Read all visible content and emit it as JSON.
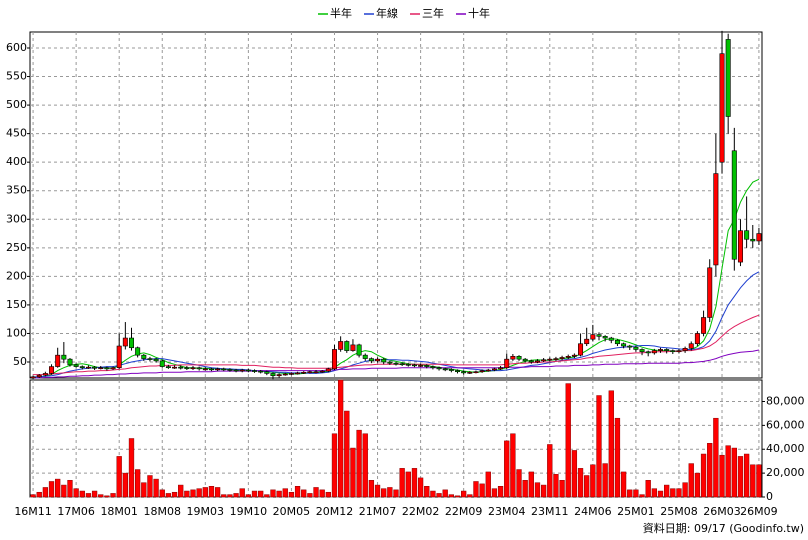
{
  "chart_data": [
    {
      "type": "candlestick",
      "categories": [
        "16M11",
        null,
        null,
        null,
        null,
        null,
        null,
        "17M06",
        null,
        null,
        null,
        null,
        null,
        null,
        "18M01",
        null,
        null,
        null,
        null,
        null,
        null,
        "18M08",
        null,
        null,
        null,
        null,
        null,
        null,
        "19M03",
        null,
        null,
        null,
        null,
        null,
        null,
        "19M10",
        null,
        null,
        null,
        null,
        null,
        null,
        "20M05",
        null,
        null,
        null,
        null,
        null,
        null,
        "20M12",
        null,
        null,
        null,
        null,
        null,
        null,
        "21M07",
        null,
        null,
        null,
        null,
        null,
        null,
        "22M02",
        null,
        null,
        null,
        null,
        null,
        null,
        "22M09",
        null,
        null,
        null,
        null,
        null,
        null,
        "23M04",
        null,
        null,
        null,
        null,
        null,
        null,
        "23M11",
        null,
        null,
        null,
        null,
        null,
        null,
        "24M06",
        null,
        null,
        null,
        null,
        null,
        null,
        "25M01",
        null,
        null,
        null,
        null,
        null,
        null,
        "25M08",
        null,
        null,
        null,
        null,
        null,
        null,
        "26M03",
        null,
        null,
        null,
        null,
        null,
        "26M09"
      ],
      "open": [
        22,
        24,
        27,
        30,
        42,
        62,
        55,
        45,
        42,
        40,
        41,
        39,
        40,
        38,
        40,
        78,
        92,
        75,
        62,
        56,
        55,
        52,
        42,
        40,
        41,
        40,
        39,
        40,
        38,
        38,
        37,
        38,
        37,
        36,
        35,
        36,
        35,
        34,
        33,
        30,
        26,
        28,
        29,
        30,
        31,
        32,
        33,
        33,
        34,
        38,
        72,
        86,
        70,
        80,
        62,
        56,
        52,
        55,
        50,
        48,
        47,
        46,
        45,
        44,
        44,
        42,
        40,
        38,
        37,
        35,
        33,
        31,
        32,
        33,
        35,
        36,
        38,
        40,
        55,
        60,
        55,
        52,
        50,
        52,
        54,
        55,
        56,
        58,
        60,
        62,
        82,
        90,
        98,
        95,
        92,
        88,
        82,
        78,
        76,
        72,
        68,
        66,
        70,
        72,
        70,
        68,
        70,
        74,
        82,
        100,
        128,
        220,
        400,
        615,
        420,
        225,
        280,
        265,
        262
      ],
      "high": [
        26,
        29,
        33,
        46,
        75,
        85,
        57,
        47,
        44,
        44,
        43,
        43,
        42,
        42,
        100,
        120,
        110,
        77,
        64,
        59,
        57,
        54,
        45,
        44,
        44,
        43,
        43,
        42,
        41,
        40,
        40,
        40,
        39,
        38,
        38,
        38,
        37,
        36,
        35,
        32,
        30,
        31,
        32,
        33,
        34,
        35,
        36,
        36,
        40,
        80,
        95,
        88,
        90,
        82,
        65,
        58,
        58,
        57,
        52,
        50,
        49,
        48,
        47,
        47,
        46,
        44,
        42,
        40,
        39,
        37,
        35,
        34,
        35,
        37,
        38,
        40,
        43,
        65,
        64,
        62,
        57,
        54,
        55,
        57,
        58,
        59,
        61,
        63,
        65,
        100,
        110,
        115,
        102,
        97,
        94,
        90,
        84,
        80,
        78,
        74,
        70,
        73,
        75,
        74,
        72,
        73,
        77,
        86,
        104,
        140,
        230,
        450,
        630,
        625,
        460,
        300,
        340,
        290,
        285
      ],
      "low": [
        20,
        22,
        25,
        28,
        40,
        48,
        42,
        40,
        37,
        38,
        36,
        37,
        35,
        36,
        38,
        72,
        70,
        58,
        52,
        51,
        49,
        40,
        38,
        38,
        37,
        36,
        36,
        35,
        35,
        34,
        34,
        34,
        33,
        32,
        32,
        32,
        31,
        30,
        27,
        20,
        23,
        26,
        27,
        28,
        29,
        30,
        30,
        31,
        32,
        36,
        68,
        66,
        68,
        58,
        52,
        48,
        49,
        46,
        45,
        44,
        43,
        42,
        41,
        41,
        39,
        37,
        35,
        34,
        32,
        30,
        28,
        29,
        30,
        31,
        33,
        34,
        36,
        38,
        52,
        52,
        49,
        47,
        48,
        50,
        51,
        52,
        53,
        55,
        57,
        60,
        78,
        86,
        88,
        86,
        83,
        78,
        74,
        71,
        68,
        62,
        60,
        63,
        66,
        65,
        64,
        65,
        66,
        70,
        78,
        95,
        120,
        200,
        380,
        450,
        210,
        218,
        250,
        250,
        255
      ],
      "close": [
        24,
        27,
        30,
        42,
        62,
        55,
        45,
        42,
        40,
        41,
        39,
        40,
        38,
        40,
        78,
        92,
        75,
        62,
        56,
        55,
        52,
        42,
        40,
        41,
        40,
        39,
        40,
        38,
        38,
        37,
        38,
        37,
        36,
        35,
        36,
        35,
        34,
        33,
        30,
        26,
        28,
        29,
        30,
        31,
        32,
        33,
        33,
        34,
        38,
        72,
        86,
        70,
        80,
        62,
        56,
        52,
        55,
        50,
        48,
        47,
        46,
        45,
        44,
        44,
        42,
        40,
        38,
        37,
        35,
        33,
        31,
        32,
        33,
        35,
        36,
        38,
        40,
        55,
        60,
        55,
        52,
        50,
        52,
        54,
        55,
        56,
        58,
        60,
        62,
        82,
        90,
        98,
        95,
        92,
        88,
        82,
        78,
        76,
        72,
        68,
        66,
        70,
        72,
        70,
        68,
        70,
        74,
        82,
        100,
        128,
        215,
        380,
        590,
        480,
        230,
        280,
        265,
        262,
        275
      ],
      "up_color": "#ff0000",
      "down_color": "#00c000",
      "series": [
        {
          "name": "半年",
          "color": "#00c000",
          "values": [
            22,
            23,
            25,
            28,
            35,
            40,
            44,
            46,
            47,
            45,
            42,
            40,
            40,
            39,
            45,
            53,
            60,
            64,
            66,
            63,
            58,
            54,
            49,
            46,
            43,
            40,
            40,
            39,
            39,
            38,
            38,
            37,
            37,
            36,
            36,
            35,
            35,
            34,
            33,
            32,
            31,
            30,
            29,
            29,
            30,
            31,
            32,
            33,
            34,
            40,
            48,
            54,
            62,
            67,
            70,
            68,
            62,
            57,
            53,
            51,
            49,
            47,
            46,
            45,
            44,
            42,
            41,
            39,
            37,
            36,
            34,
            33,
            32,
            33,
            34,
            35,
            37,
            40,
            44,
            48,
            51,
            53,
            54,
            53,
            53,
            54,
            56,
            57,
            59,
            64,
            70,
            77,
            84,
            89,
            91,
            90,
            87,
            84,
            80,
            76,
            73,
            71,
            70,
            70,
            69,
            69,
            70,
            72,
            77,
            87,
            108,
            147,
            214,
            280,
            300,
            330,
            350,
            365,
            370
          ]
        },
        {
          "name": "年線",
          "color": "#2040d0",
          "values": [
            24,
            24,
            25,
            26,
            28,
            31,
            34,
            36,
            38,
            39,
            40,
            41,
            42,
            42,
            44,
            47,
            50,
            52,
            54,
            55,
            56,
            56,
            54,
            52,
            50,
            48,
            46,
            44,
            42,
            40,
            39,
            38,
            38,
            37,
            37,
            36,
            35,
            35,
            34,
            33,
            32,
            32,
            31,
            31,
            31,
            30,
            30,
            31,
            32,
            35,
            38,
            41,
            45,
            48,
            51,
            53,
            54,
            54,
            54,
            54,
            53,
            53,
            52,
            51,
            50,
            48,
            46,
            44,
            42,
            40,
            39,
            38,
            37,
            36,
            35,
            35,
            35,
            36,
            38,
            40,
            42,
            44,
            45,
            47,
            49,
            51,
            53,
            55,
            56,
            58,
            61,
            65,
            68,
            71,
            73,
            75,
            76,
            77,
            78,
            79,
            79,
            78,
            76,
            75,
            74,
            73,
            72,
            72,
            73,
            77,
            87,
            104,
            128,
            150,
            165,
            180,
            192,
            202,
            208
          ]
        },
        {
          "name": "三年",
          "color": "#e02060",
          "values": [
            28,
            28,
            28,
            29,
            30,
            31,
            32,
            33,
            33,
            34,
            34,
            35,
            35,
            36,
            37,
            38,
            40,
            41,
            42,
            43,
            43,
            44,
            44,
            44,
            45,
            45,
            45,
            45,
            45,
            45,
            45,
            45,
            45,
            45,
            44,
            44,
            44,
            43,
            42,
            41,
            41,
            40,
            40,
            39,
            39,
            39,
            39,
            39,
            39,
            40,
            41,
            42,
            43,
            44,
            45,
            45,
            46,
            46,
            46,
            46,
            46,
            46,
            46,
            46,
            46,
            46,
            46,
            46,
            45,
            45,
            45,
            45,
            45,
            45,
            45,
            45,
            45,
            46,
            47,
            48,
            48,
            49,
            49,
            50,
            50,
            51,
            52,
            53,
            54,
            55,
            57,
            58,
            60,
            61,
            62,
            63,
            64,
            65,
            66,
            66,
            67,
            68,
            68,
            68,
            69,
            69,
            70,
            70,
            72,
            74,
            78,
            85,
            95,
            105,
            112,
            118,
            123,
            128,
            132
          ]
        },
        {
          "name": "十年",
          "color": "#8000c0",
          "values": [
            22,
            22,
            23,
            23,
            24,
            24,
            25,
            25,
            26,
            26,
            27,
            27,
            28,
            28,
            29,
            29,
            30,
            30,
            31,
            31,
            31,
            32,
            32,
            32,
            32,
            33,
            33,
            33,
            33,
            33,
            34,
            34,
            34,
            34,
            34,
            34,
            34,
            35,
            35,
            35,
            35,
            35,
            35,
            35,
            35,
            35,
            35,
            35,
            36,
            36,
            37,
            37,
            38,
            38,
            38,
            39,
            39,
            39,
            39,
            39,
            40,
            40,
            40,
            40,
            40,
            40,
            40,
            40,
            40,
            40,
            40,
            40,
            40,
            40,
            40,
            40,
            40,
            41,
            41,
            41,
            41,
            42,
            42,
            42,
            42,
            43,
            43,
            43,
            44,
            44,
            44,
            45,
            45,
            46,
            46,
            46,
            47,
            47,
            47,
            47,
            48,
            48,
            48,
            48,
            48,
            48,
            49,
            49,
            50,
            51,
            53,
            56,
            60,
            63,
            65,
            67,
            68,
            69,
            71
          ]
        }
      ],
      "ylim": [
        22,
        628
      ],
      "yticks": [
        50,
        100,
        150,
        200,
        250,
        300,
        350,
        400,
        450,
        500,
        550,
        600
      ],
      "grid": true
    },
    {
      "type": "bar",
      "color": "#ff0000",
      "values": [
        2000,
        4000,
        8000,
        13000,
        15000,
        10000,
        14000,
        7000,
        5000,
        3000,
        5000,
        2000,
        1000,
        3000,
        34000,
        20000,
        49000,
        23000,
        12000,
        18000,
        15000,
        6000,
        3000,
        4000,
        10000,
        5000,
        6000,
        7000,
        8000,
        9000,
        8000,
        2000,
        2000,
        3000,
        7000,
        2000,
        5000,
        5000,
        2000,
        6000,
        5000,
        7000,
        4000,
        9000,
        6000,
        3000,
        8000,
        6000,
        4000,
        53000,
        98000,
        72000,
        41000,
        56000,
        53000,
        14000,
        10000,
        7000,
        8000,
        6000,
        24000,
        21000,
        24000,
        16000,
        9000,
        5000,
        3000,
        6000,
        2000,
        1000,
        5000,
        2000,
        13000,
        11000,
        21000,
        7000,
        9000,
        47000,
        53000,
        23000,
        14000,
        21000,
        12000,
        10000,
        44000,
        19000,
        14000,
        95000,
        39000,
        24000,
        18000,
        27000,
        85000,
        28000,
        89000,
        66000,
        21000,
        6000,
        6000,
        2000,
        14000,
        7000,
        5000,
        10000,
        7000,
        7000,
        12000,
        28000,
        20000,
        36000,
        45000,
        66000,
        35000,
        43000,
        41000,
        34000,
        36000,
        27000,
        27000
      ],
      "ylim": [
        0,
        98000
      ],
      "yticks": [
        0,
        {
          "value": 20000,
          "label": "20,000"
        },
        {
          "value": 40000,
          "label": "40,000"
        },
        {
          "value": 60000,
          "label": "60,000"
        },
        {
          "value": 80000,
          "label": "80,000"
        }
      ],
      "grid": true
    }
  ],
  "footer": "資料日期: 09/17 (Goodinfo.tw)"
}
